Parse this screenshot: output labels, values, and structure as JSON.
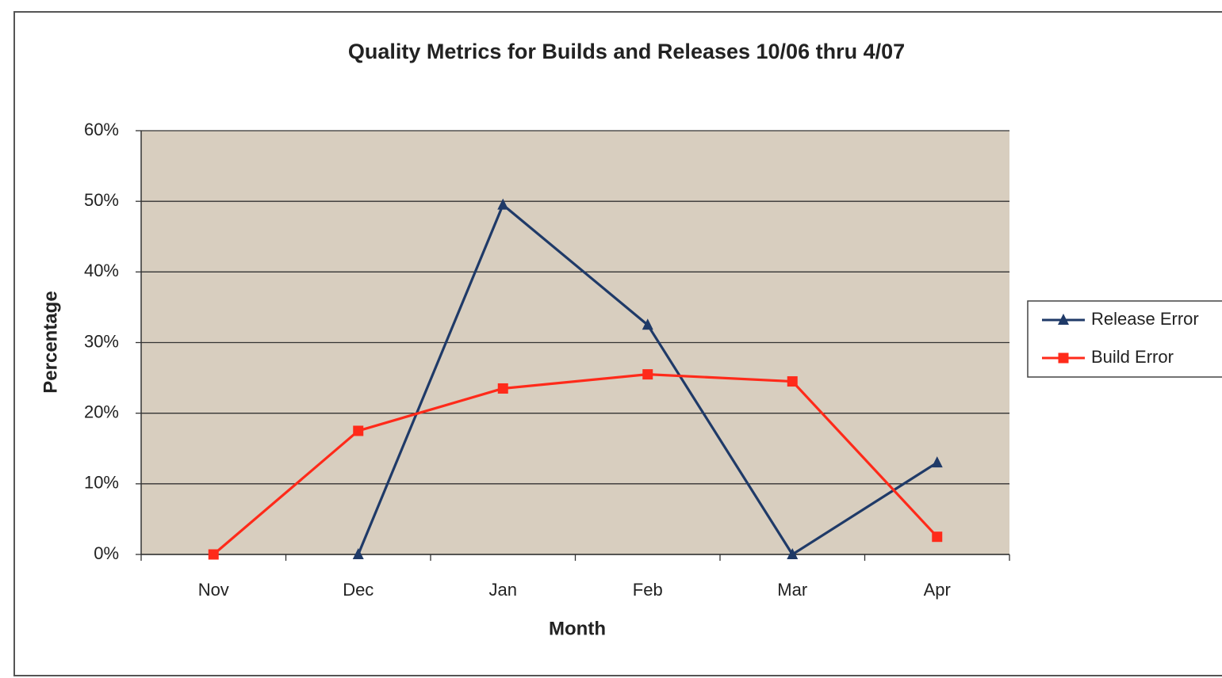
{
  "chart_data": {
    "type": "line",
    "title": "Quality Metrics for Builds and Releases 10/06 thru 4/07",
    "xlabel": "Month",
    "ylabel": "Percentage",
    "categories": [
      "Nov",
      "Dec",
      "Jan",
      "Feb",
      "Mar",
      "Apr"
    ],
    "series": [
      {
        "name": "Release Error",
        "color": "#1f3a68",
        "marker": "triangle",
        "values": [
          null,
          0,
          49.5,
          32.5,
          0,
          13
        ]
      },
      {
        "name": "Build Error",
        "color": "#ff2a1a",
        "marker": "square",
        "values": [
          0,
          17.5,
          23.5,
          25.5,
          24.5,
          2.5
        ]
      }
    ],
    "ylim": [
      0,
      60
    ],
    "yticks": [
      {
        "value": 0,
        "label": "0%"
      },
      {
        "value": 10,
        "label": "10%"
      },
      {
        "value": 20,
        "label": "20%"
      },
      {
        "value": 30,
        "label": "30%"
      },
      {
        "value": 40,
        "label": "40%"
      },
      {
        "value": 50,
        "label": "50%"
      },
      {
        "value": 60,
        "label": "60%"
      }
    ],
    "grid": true,
    "legend": "right"
  }
}
